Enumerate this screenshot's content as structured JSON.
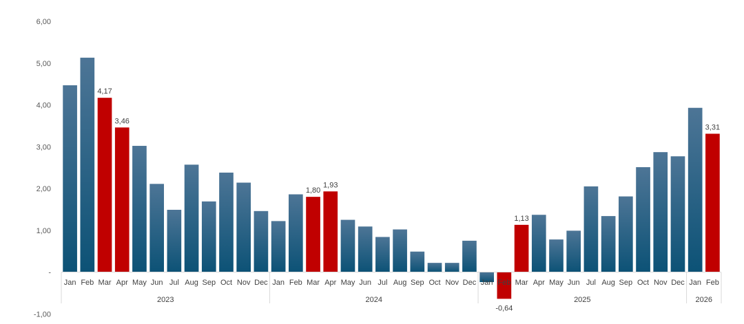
{
  "chart_data": {
    "type": "bar",
    "title": "",
    "xlabel": "",
    "ylabel": "",
    "ylim": [
      -1,
      6
    ],
    "y_ticks": [
      "-1,00",
      "-",
      "1,00",
      "2,00",
      "3,00",
      "4,00",
      "5,00",
      "6,00"
    ],
    "y_tick_values": [
      -1,
      0,
      1,
      2,
      3,
      4,
      5,
      6
    ],
    "grid": false,
    "legend": "none",
    "year_groups": [
      {
        "label": "2023",
        "count": 12
      },
      {
        "label": "2024",
        "count": 12
      },
      {
        "label": "2025",
        "count": 12
      },
      {
        "label": "2026",
        "count": 2
      }
    ],
    "categories": [
      "Jan",
      "Feb",
      "Mar",
      "Apr",
      "May",
      "Jun",
      "Jul",
      "Aug",
      "Sep",
      "Oct",
      "Nov",
      "Dec",
      "Jan",
      "Feb",
      "Mar",
      "Apr",
      "May",
      "Jun",
      "Jul",
      "Aug",
      "Sep",
      "Oct",
      "Nov",
      "Dec",
      "Jan",
      "Feb",
      "Mar",
      "Apr",
      "May",
      "Jun",
      "Jul",
      "Aug",
      "Sep",
      "Oct",
      "Nov",
      "Dec",
      "Jan",
      "Feb"
    ],
    "values": [
      4.47,
      5.13,
      4.17,
      3.46,
      3.02,
      2.11,
      1.49,
      2.57,
      1.69,
      2.38,
      2.14,
      1.46,
      1.22,
      1.86,
      1.8,
      1.93,
      1.25,
      1.09,
      0.84,
      1.02,
      0.49,
      0.22,
      0.22,
      0.75,
      -0.24,
      -0.64,
      1.13,
      1.37,
      0.78,
      0.99,
      2.05,
      1.34,
      1.81,
      2.51,
      2.87,
      2.77,
      3.93,
      3.31
    ],
    "highlighted": [
      false,
      false,
      true,
      true,
      false,
      false,
      false,
      false,
      false,
      false,
      false,
      false,
      false,
      false,
      true,
      true,
      false,
      false,
      false,
      false,
      false,
      false,
      false,
      false,
      false,
      true,
      true,
      false,
      false,
      false,
      false,
      false,
      false,
      false,
      false,
      false,
      false,
      true
    ],
    "data_labels": [
      "",
      "",
      "4,17",
      "3,46",
      "",
      "",
      "",
      "",
      "",
      "",
      "",
      "",
      "",
      "",
      "1,80",
      "1,93",
      "",
      "",
      "",
      "",
      "",
      "",
      "",
      "",
      "",
      "-0,64",
      "1,13",
      "",
      "",
      "",
      "",
      "",
      "",
      "",
      "",
      "",
      "",
      "3,31"
    ],
    "colors": {
      "bar_top": "#4d7596",
      "bar_bottom": "#0c5276",
      "highlight": "#c00000",
      "axis": "#d9d9d9",
      "text": "#404040"
    }
  }
}
